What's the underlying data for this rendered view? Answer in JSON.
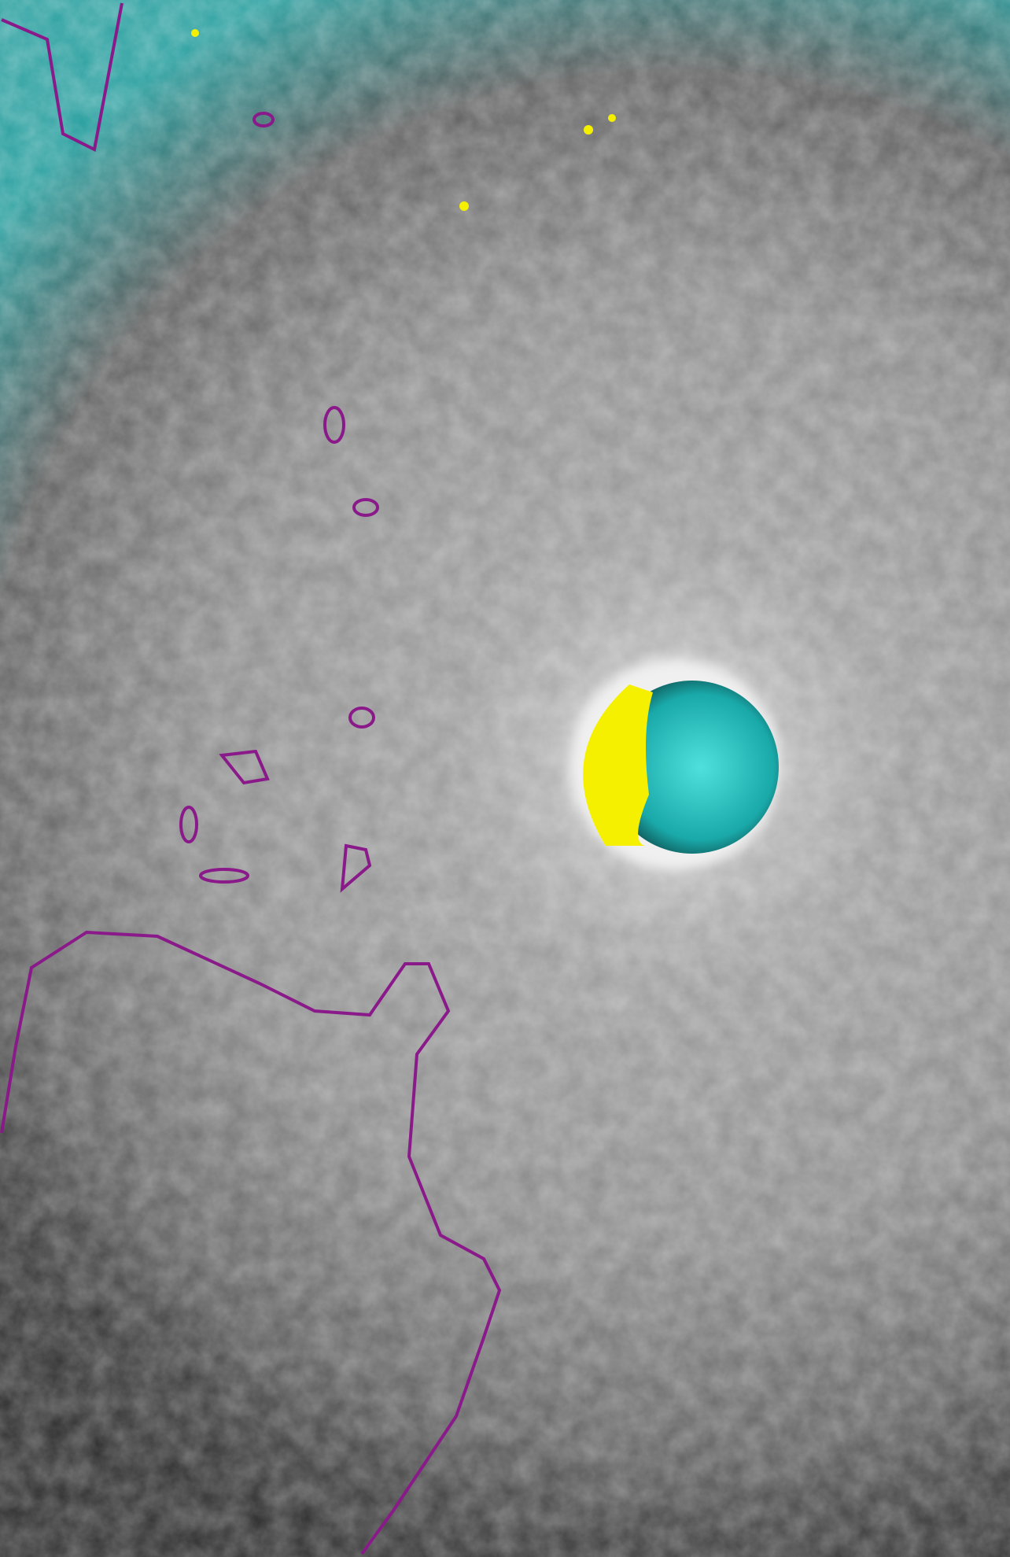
{
  "image": {
    "subject": "hurricane-satellite-infrared",
    "colors": {
      "cloud_gray": "#9a9a9a",
      "dark_background": "#2a2a2a",
      "cold_cloud_cyan": "#2ec4c4",
      "eye_yellow": "#f2ef00",
      "coastline_purple": "#8a1a8a"
    }
  }
}
